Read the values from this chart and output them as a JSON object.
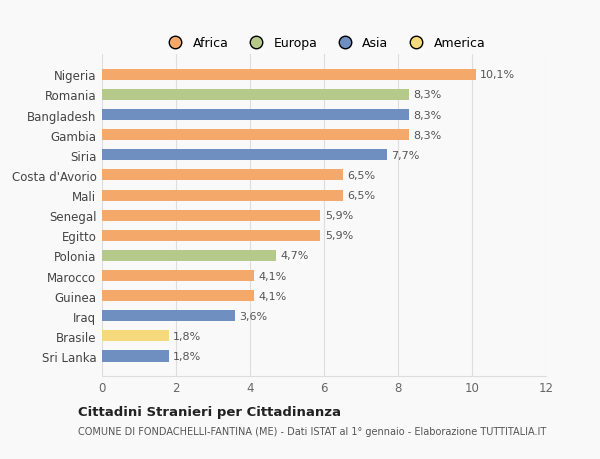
{
  "countries": [
    "Nigeria",
    "Romania",
    "Bangladesh",
    "Gambia",
    "Siria",
    "Costa d'Avorio",
    "Mali",
    "Senegal",
    "Egitto",
    "Polonia",
    "Marocco",
    "Guinea",
    "Iraq",
    "Brasile",
    "Sri Lanka"
  ],
  "values": [
    10.1,
    8.3,
    8.3,
    8.3,
    7.7,
    6.5,
    6.5,
    5.9,
    5.9,
    4.7,
    4.1,
    4.1,
    3.6,
    1.8,
    1.8
  ],
  "labels": [
    "10,1%",
    "8,3%",
    "8,3%",
    "8,3%",
    "7,7%",
    "6,5%",
    "6,5%",
    "5,9%",
    "5,9%",
    "4,7%",
    "4,1%",
    "4,1%",
    "3,6%",
    "1,8%",
    "1,8%"
  ],
  "continents": [
    "Africa",
    "Europa",
    "Asia",
    "Africa",
    "Asia",
    "Africa",
    "Africa",
    "Africa",
    "Africa",
    "Europa",
    "Africa",
    "Africa",
    "Asia",
    "America",
    "Asia"
  ],
  "colors": {
    "Africa": "#F4A96A",
    "Europa": "#B5C98A",
    "Asia": "#6E8FC0",
    "America": "#F5D97A"
  },
  "legend_order": [
    "Africa",
    "Europa",
    "Asia",
    "America"
  ],
  "xlim": [
    0,
    12
  ],
  "xticks": [
    0,
    2,
    4,
    6,
    8,
    10,
    12
  ],
  "title": "Cittadini Stranieri per Cittadinanza",
  "subtitle": "COMUNE DI FONDACHELLI-FANTINA (ME) - Dati ISTAT al 1° gennaio - Elaborazione TUTTITALIA.IT",
  "bg_color": "#f9f9f9",
  "grid_color": "#dddddd"
}
